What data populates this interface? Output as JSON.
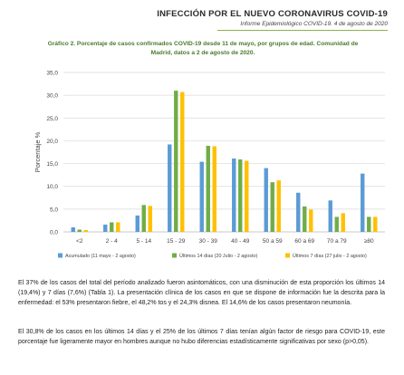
{
  "header": {
    "title": "INFECCIÓN POR EL NUEVO CORONAVIRUS COVID-19",
    "subtitle": "Informe Epidemiológico COVID-19. 4 de agosto de 2020"
  },
  "chart_title_line1": "Gráfico 2. Porcentaje de casos confirmados COVID-19 desde 11 de mayo, por grupos de edad. Comunidad de",
  "chart_title_line2": "Madrid, datos a 2 de agosto de 2020.",
  "colors": {
    "accent_green": "#4a7a2e",
    "series_blue": "#5b9bd5",
    "series_green": "#70ad47",
    "series_yellow": "#ffc000"
  },
  "chart_data": {
    "type": "bar",
    "ylabel": "Porcentaje %",
    "xlabel": "",
    "ylim": [
      0,
      35
    ],
    "yticks": [
      "0,0",
      "5,0",
      "10,0",
      "15,0",
      "20,0",
      "25,0",
      "30,0",
      "35,0"
    ],
    "grid": true,
    "legend_position": "bottom",
    "categories": [
      "<2",
      "2 - 4",
      "5 - 14",
      "15 - 29",
      "30 - 39",
      "40 - 49",
      "50 a 59",
      "60 a 69",
      "70 a 79",
      "≥80"
    ],
    "series": [
      {
        "name": "Acumulado (11 mayo - 2 agosto)",
        "values": [
          1.0,
          1.6,
          3.6,
          19.2,
          15.4,
          16.1,
          14.0,
          8.6,
          6.9,
          12.8
        ]
      },
      {
        "name": "Últimos 14 días (20 Julio - 2 agosto)",
        "values": [
          0.5,
          2.1,
          5.9,
          31.0,
          18.9,
          15.9,
          10.9,
          5.6,
          3.3,
          3.3
        ]
      },
      {
        "name": "Últimos 7 días (27 julio - 2 agosto)",
        "values": [
          0.4,
          2.1,
          5.7,
          30.7,
          18.8,
          15.6,
          11.3,
          4.9,
          4.1,
          3.3
        ]
      }
    ]
  },
  "paragraphs": [
    "El 37% de los casos del total del período analizado fueron asintomáticos, con una disminución de esta proporción los últimos 14 (19,4%) y 7 días (7,6%) (Tabla 1). La presentación clínica de los casos en que se dispone de información fue la descrita para la enfermedad: el 53% presentaron fiebre, el 48,2% tos y el 24,3% disnea. El 14,6% de los casos presentaron neumonía.",
    "El 30,8% de los casos en los últimos 14 días y el 25% de los últimos 7 días tenían algún factor de riesgo para COVID-19, este porcentaje fue ligeramente mayor en hombres aunque no hubo diferencias estadísticamente significativas por sexo (p>0,05)."
  ]
}
